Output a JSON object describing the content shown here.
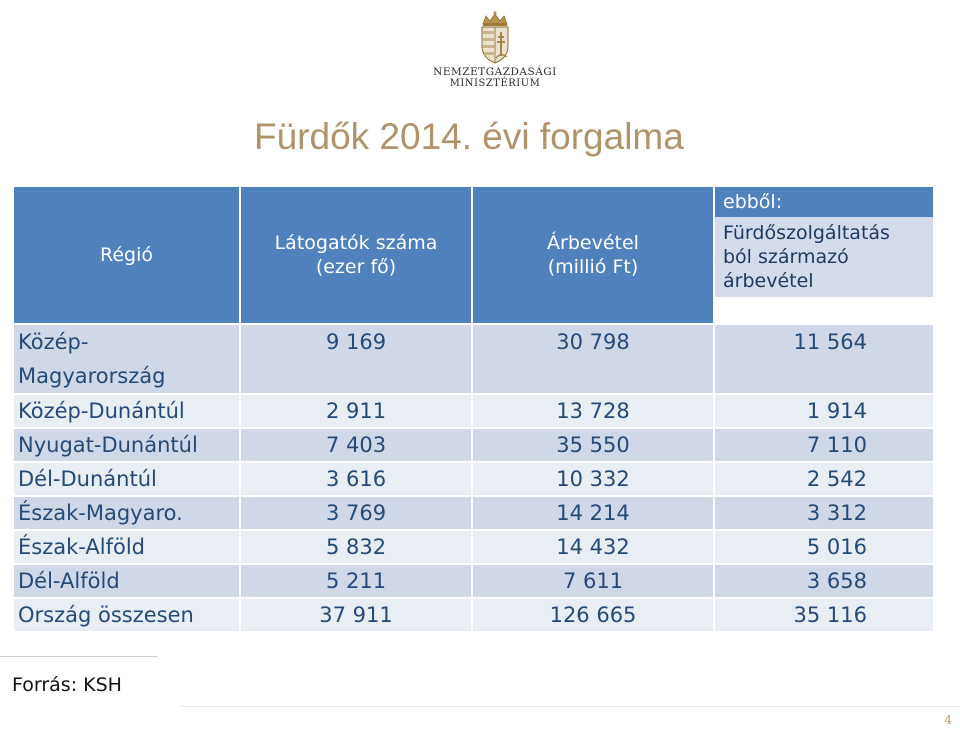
{
  "logo": {
    "line1": "NEMZETGAZDASÁGI",
    "line2": "MINISZTÉRIUM"
  },
  "title": "Fürdők 2014. évi forgalma",
  "table": {
    "headers": {
      "region": "Régió",
      "visitors_line1": "Látogatók száma",
      "visitors_line2": "(ezer fő)",
      "revenue_line1": "Árbevétel",
      "revenue_line2": "(millió Ft)",
      "of_which": "ebből:",
      "bath_line1": "Fürdőszolgáltatás",
      "bath_line2": "ból származó",
      "bath_line3": "árbevétel"
    },
    "rows": [
      {
        "region_line1": "Közép-",
        "region_line2": "Magyarország",
        "visitors": "9 169",
        "revenue": "30 798",
        "bath_revenue": "11 564"
      },
      {
        "region": "Közép-Dunántúl",
        "visitors": "2 911",
        "revenue": "13 728",
        "bath_revenue": "1 914"
      },
      {
        "region": "Nyugat-Dunántúl",
        "visitors": "7 403",
        "revenue": "35 550",
        "bath_revenue": "7 110"
      },
      {
        "region": "Dél-Dunántúl",
        "visitors": "3 616",
        "revenue": "10 332",
        "bath_revenue": "2 542"
      },
      {
        "region": "Észak-Magyaro.",
        "visitors": "3 769",
        "revenue": "14 214",
        "bath_revenue": "3 312"
      },
      {
        "region": "Észak-Alföld",
        "visitors": "5 832",
        "revenue": "14 432",
        "bath_revenue": "5 016"
      },
      {
        "region": "Dél-Alföld",
        "visitors": "5 211",
        "revenue": "7 611",
        "bath_revenue": "3 658"
      },
      {
        "region": "Ország összesen",
        "visitors": "37 911",
        "revenue": "126 665",
        "bath_revenue": "35 116"
      }
    ]
  },
  "source": "Forrás: KSH",
  "page_number": "4",
  "colors": {
    "header_blue": "#4f81bd",
    "row_dark": "#d0d8e8",
    "row_light": "#e9edf4",
    "title_gold": "#b0936a",
    "text_blue": "#264a78"
  },
  "icons": {
    "logo_emblem": "hungarian-coat-of-arms-icon"
  }
}
